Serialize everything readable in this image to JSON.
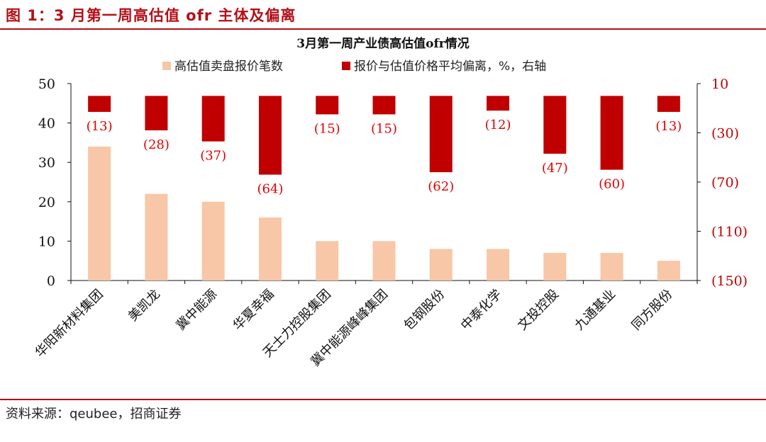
{
  "header": {
    "figure_title": "图 1：3 月第一周高估值 ofr 主体及偏离"
  },
  "footer": {
    "source": "资料来源：qeubee，招商证券"
  },
  "colors": {
    "brand_red": "#b4101a",
    "bar_count": "#f7c7a7",
    "bar_deviation": "#c00000",
    "data_label": "#e00000"
  },
  "chart_data": {
    "type": "bar",
    "title": "3月第一周产业债高估值ofr情况",
    "categories": [
      "华阳新材料集团",
      "美凯龙",
      "冀中能源",
      "华夏幸福",
      "天士力控股集团",
      "冀中能源峰峰集团",
      "包钢股份",
      "中泰化学",
      "文投控股",
      "九通基业",
      "同方股份"
    ],
    "series": [
      {
        "name": "高估值卖盘报价笔数",
        "axis": "left",
        "values": [
          34,
          22,
          20,
          16,
          10,
          10,
          8,
          8,
          7,
          7,
          5
        ]
      },
      {
        "name": "报价与估值价格平均偏离，%，右轴",
        "axis": "right",
        "values": [
          -13,
          -28,
          -37,
          -64,
          -15,
          -15,
          -62,
          -12,
          -47,
          -60,
          -13
        ],
        "labels": [
          "(13)",
          "(28)",
          "(37)",
          "(64)",
          "(15)",
          "(15)",
          "(62)",
          "(12)",
          "(47)",
          "(60)",
          "(13)"
        ]
      }
    ],
    "left_axis": {
      "ylim": [
        0,
        50
      ],
      "ticks": [
        0,
        10,
        20,
        30,
        40,
        50
      ],
      "tick_labels": [
        "0",
        "10",
        "20",
        "30",
        "40",
        "50"
      ]
    },
    "right_axis": {
      "ylim": [
        -150,
        10
      ],
      "ticks": [
        10,
        -30,
        -70,
        -110,
        -150
      ],
      "tick_labels": [
        "10",
        "(30)",
        "(70)",
        "(110)",
        "(150)"
      ]
    },
    "grid": false,
    "legend_position": "top-center"
  }
}
